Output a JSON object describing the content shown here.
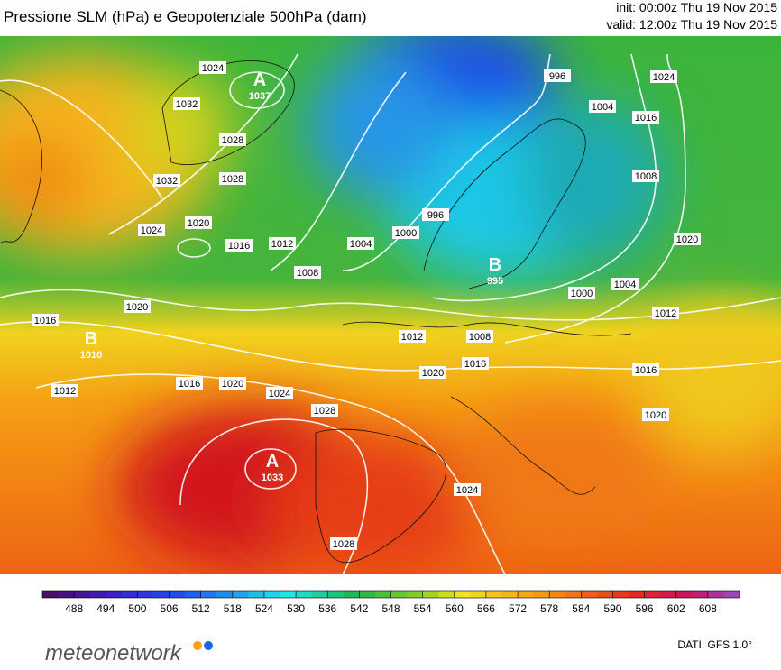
{
  "header": {
    "title": "Pressione SLM (hPa) e Geopotenziale 500hPa (dam)",
    "init": "init: 00:00z Thu 19 Nov 2015",
    "valid": "valid: 12:00z Thu 19 Nov 2015"
  },
  "pressure_centers": [
    {
      "symbol": "A",
      "value": 1037
    },
    {
      "symbol": "B",
      "value": 1010
    },
    {
      "symbol": "A",
      "value": 1033
    },
    {
      "symbol": "B",
      "value": 995
    }
  ],
  "isobar_labels": [
    1024,
    1032,
    1028,
    1028,
    1032,
    1024,
    1020,
    1016,
    1012,
    1008,
    1004,
    1000,
    996,
    1020,
    1016,
    1012,
    1016,
    1020,
    1024,
    1028,
    1012,
    1008,
    1016,
    1020,
    1000,
    1004,
    1012,
    1016,
    1020,
    1024,
    1028,
    996,
    1004,
    1016,
    1024,
    1008,
    1020
  ],
  "colorbar": {
    "ticks": [
      488,
      494,
      500,
      506,
      512,
      518,
      524,
      530,
      536,
      542,
      548,
      554,
      560,
      566,
      572,
      578,
      584,
      590,
      596,
      602,
      608
    ]
  },
  "footer": {
    "brand": "meteonetwork",
    "source": "DATI: GFS 1.0°"
  }
}
